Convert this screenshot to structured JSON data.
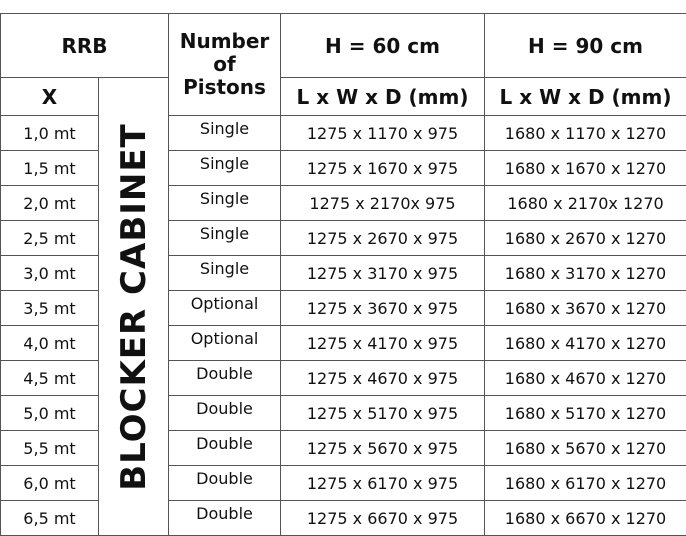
{
  "header": {
    "rrb": "RRB",
    "pistons_line1": "Number",
    "pistons_line2": "of",
    "pistons_line3": "Pistons",
    "h60": "H = 60 cm",
    "h90": "H = 90 cm",
    "x": "X",
    "dims60": "L x W x D (mm)",
    "dims90": "L x W x D (mm)"
  },
  "vertical_label": "BLOCKER CABINET",
  "rows": [
    {
      "x": "1,0 mt",
      "pistons": "Single",
      "h60": "1275 x 1170 x 975",
      "h90": "1680 x 1170 x 1270"
    },
    {
      "x": "1,5 mt",
      "pistons": "Single",
      "h60": "1275 x 1670 x 975",
      "h90": "1680 x 1670 x 1270"
    },
    {
      "x": "2,0 mt",
      "pistons": "Single",
      "h60": "1275 x 2170x 975",
      "h90": "1680 x 2170x 1270"
    },
    {
      "x": "2,5 mt",
      "pistons": "Single",
      "h60": "1275 x 2670 x 975",
      "h90": "1680 x 2670 x 1270"
    },
    {
      "x": "3,0 mt",
      "pistons": "Single",
      "h60": "1275 x 3170 x 975",
      "h90": "1680 x 3170 x 1270"
    },
    {
      "x": "3,5 mt",
      "pistons": "Optional",
      "h60": "1275 x 3670 x 975",
      "h90": "1680 x 3670 x 1270"
    },
    {
      "x": "4,0 mt",
      "pistons": "Optional",
      "h60": "1275 x 4170 x 975",
      "h90": "1680 x 4170 x 1270"
    },
    {
      "x": "4,5 mt",
      "pistons": "Double",
      "h60": "1275 x 4670 x 975",
      "h90": "1680 x 4670 x 1270"
    },
    {
      "x": "5,0 mt",
      "pistons": "Double",
      "h60": "1275 x 5170 x 975",
      "h90": "1680 x 5170 x 1270"
    },
    {
      "x": "5,5 mt",
      "pistons": "Double",
      "h60": "1275 x 5670 x 975",
      "h90": "1680 x 5670 x 1270"
    },
    {
      "x": "6,0 mt",
      "pistons": "Double",
      "h60": "1275 x 6170 x 975",
      "h90": "1680 x 6170 x 1270"
    },
    {
      "x": "6,5 mt",
      "pistons": "Double",
      "h60": "1275 x 6670 x 975",
      "h90": "1680 x 6670 x 1270"
    }
  ]
}
